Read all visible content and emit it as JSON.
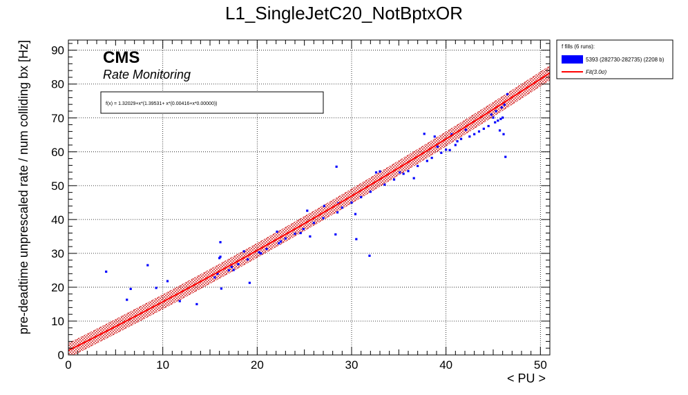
{
  "chart_data": {
    "type": "scatter",
    "title": "L1_SingleJetC20_NotBptxOR",
    "xlabel": "< PU >",
    "ylabel": "pre-deadtime unprescaled rate / num colliding bx [Hz]",
    "xlim": [
      0,
      51
    ],
    "ylim": [
      0,
      93
    ],
    "xticks": [
      0,
      10,
      20,
      30,
      40,
      50
    ],
    "yticks": [
      0,
      10,
      20,
      30,
      40,
      50,
      60,
      70,
      80,
      90
    ],
    "grid": true,
    "cms_label": "CMS",
    "subtitle": "Rate Monitoring",
    "fit_formula": "f(x) = 1.32029+x*(1.39531+ x*(0.00416+x*0.00000))",
    "fit_params": {
      "c0": 1.32029,
      "c1": 1.39531,
      "c2": 0.00416,
      "c3": 0.0
    },
    "band_sigma": 3.0,
    "band_halfwidth": 2.1,
    "legend": {
      "position": "top-right",
      "header": "f fills (6 runs):",
      "entries": [
        {
          "label": "5393 (282730-282735) (2208 b)",
          "color": "#0000ff",
          "kind": "box"
        },
        {
          "label": "Fit(3.0σ)",
          "color": "#ff0000",
          "kind": "line"
        }
      ]
    },
    "series": [
      {
        "name": "5393 (282730-282735) (2208 b)",
        "color": "#0000ff",
        "points": [
          [
            4.0,
            24.6
          ],
          [
            6.2,
            16.3
          ],
          [
            6.6,
            19.5
          ],
          [
            8.4,
            26.5
          ],
          [
            9.3,
            19.8
          ],
          [
            10.5,
            21.8
          ],
          [
            11.8,
            15.9
          ],
          [
            13.6,
            15.0
          ],
          [
            15.8,
            24.0
          ],
          [
            16.0,
            28.6
          ],
          [
            16.1,
            29.0
          ],
          [
            16.1,
            33.3
          ],
          [
            16.2,
            19.6
          ],
          [
            17.3,
            26.0
          ],
          [
            17.5,
            25.1
          ],
          [
            18.6,
            30.6
          ],
          [
            19.2,
            21.3
          ],
          [
            20.2,
            30.3
          ],
          [
            20.4,
            30.0
          ],
          [
            22.1,
            36.4
          ],
          [
            22.3,
            33.0
          ],
          [
            22.5,
            33.5
          ],
          [
            24.6,
            36.0
          ],
          [
            24.9,
            37.2
          ],
          [
            25.3,
            42.6
          ],
          [
            25.6,
            35.0
          ],
          [
            27.1,
            44.0
          ],
          [
            28.3,
            35.6
          ],
          [
            28.4,
            55.6
          ],
          [
            28.5,
            42.1
          ],
          [
            28.6,
            44.8
          ],
          [
            30.4,
            41.6
          ],
          [
            30.5,
            34.2
          ],
          [
            31.9,
            29.3
          ],
          [
            32.6,
            53.9
          ],
          [
            33.0,
            54.2
          ],
          [
            35.1,
            53.9
          ],
          [
            36.6,
            52.2
          ],
          [
            37.7,
            65.3
          ],
          [
            38.8,
            64.5
          ],
          [
            39.1,
            61.5
          ],
          [
            40.4,
            60.5
          ],
          [
            40.6,
            65.2
          ],
          [
            41.2,
            63.1
          ],
          [
            41.6,
            63.8
          ],
          [
            42.1,
            66.5
          ],
          [
            45.0,
            70.1
          ],
          [
            45.7,
            66.3
          ],
          [
            46.1,
            65.2
          ],
          [
            46.3,
            58.5
          ],
          [
            46.5,
            77.0
          ],
          [
            15.5,
            22.9
          ],
          [
            17.0,
            25.0
          ],
          [
            18.0,
            26.8
          ],
          [
            19.0,
            28.2
          ],
          [
            21.0,
            31.3
          ],
          [
            23.0,
            34.4
          ],
          [
            24.0,
            35.8
          ],
          [
            26.0,
            39.0
          ],
          [
            27.0,
            40.4
          ],
          [
            29.0,
            43.5
          ],
          [
            30.0,
            45.0
          ],
          [
            31.0,
            46.6
          ],
          [
            32.0,
            48.2
          ],
          [
            33.5,
            50.3
          ],
          [
            34.5,
            51.8
          ],
          [
            35.5,
            53.5
          ],
          [
            36.0,
            54.3
          ],
          [
            37.0,
            55.8
          ],
          [
            38.0,
            57.3
          ],
          [
            38.5,
            58.2
          ],
          [
            39.5,
            59.7
          ],
          [
            40.0,
            60.6
          ],
          [
            41.0,
            62.0
          ],
          [
            42.5,
            64.5
          ],
          [
            43.0,
            65.2
          ],
          [
            43.5,
            66.0
          ],
          [
            44.0,
            66.8
          ],
          [
            44.5,
            67.6
          ],
          [
            45.2,
            68.7
          ],
          [
            45.5,
            69.2
          ],
          [
            45.8,
            69.7
          ],
          [
            46.0,
            70.1
          ],
          [
            44.8,
            71.0
          ],
          [
            45.3,
            72.0
          ],
          [
            45.9,
            73.1
          ],
          [
            46.2,
            73.9
          ]
        ]
      }
    ]
  }
}
